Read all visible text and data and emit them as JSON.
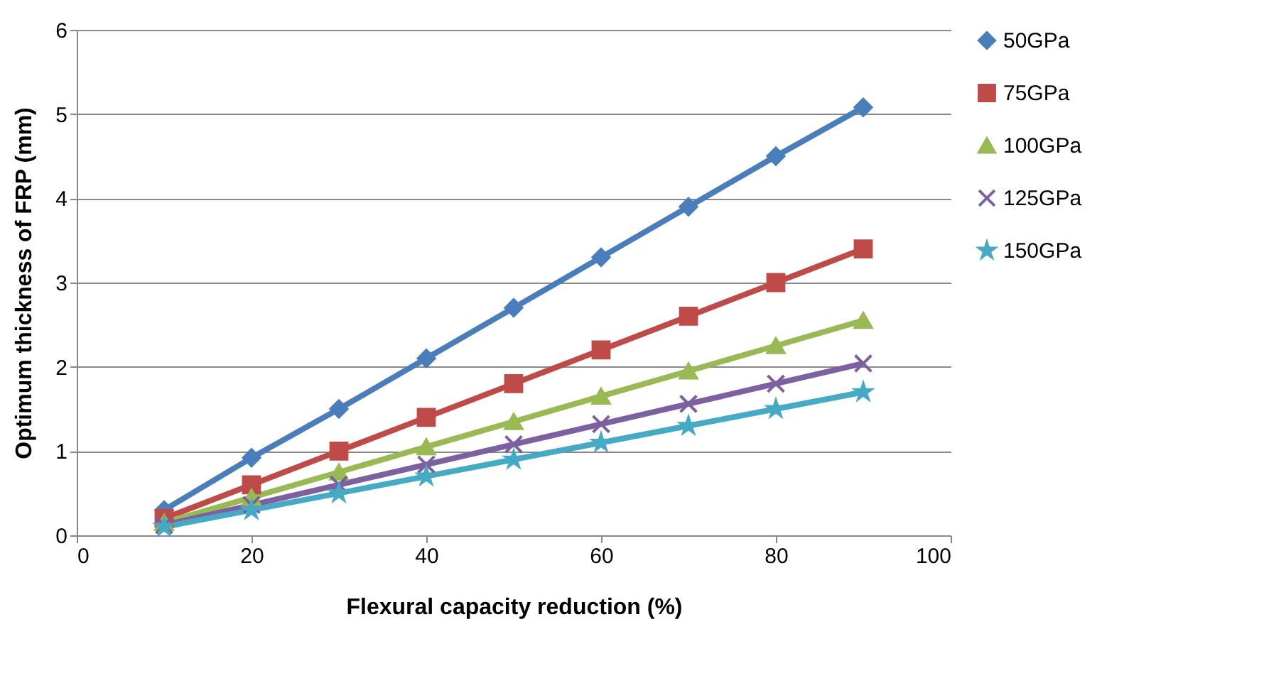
{
  "chart_data": {
    "type": "line",
    "xlabel": "Flexural capacity reduction (%)",
    "ylabel": "Optimum thickness of FRP (mm)",
    "x": [
      10,
      20,
      30,
      40,
      50,
      60,
      70,
      80,
      90
    ],
    "series": [
      {
        "name": "50GPa",
        "color": "#4a7ebb",
        "marker": "diamond",
        "values": [
          0.3,
          0.92,
          1.5,
          2.1,
          2.7,
          3.3,
          3.9,
          4.5,
          5.08
        ]
      },
      {
        "name": "75GPa",
        "color": "#be4b48",
        "marker": "square",
        "values": [
          0.2,
          0.6,
          1.0,
          1.4,
          1.8,
          2.2,
          2.6,
          3.0,
          3.4
        ]
      },
      {
        "name": "100GPa",
        "color": "#98b954",
        "marker": "triangle",
        "values": [
          0.15,
          0.45,
          0.75,
          1.05,
          1.35,
          1.65,
          1.95,
          2.25,
          2.55
        ]
      },
      {
        "name": "125GPa",
        "color": "#7d60a0",
        "marker": "cross",
        "values": [
          0.12,
          0.36,
          0.6,
          0.84,
          1.08,
          1.32,
          1.56,
          1.8,
          2.04
        ]
      },
      {
        "name": "150GPa",
        "color": "#46aac5",
        "marker": "star",
        "values": [
          0.1,
          0.3,
          0.5,
          0.7,
          0.9,
          1.1,
          1.3,
          1.5,
          1.7
        ]
      }
    ],
    "xlim": [
      0,
      100
    ],
    "xticks": [
      0,
      20,
      40,
      60,
      80,
      100
    ],
    "ylim": [
      0,
      6
    ],
    "yticks": [
      0,
      1,
      2,
      3,
      4,
      5,
      6
    ],
    "grid": "y",
    "legend": "right",
    "line_style": "solid"
  }
}
